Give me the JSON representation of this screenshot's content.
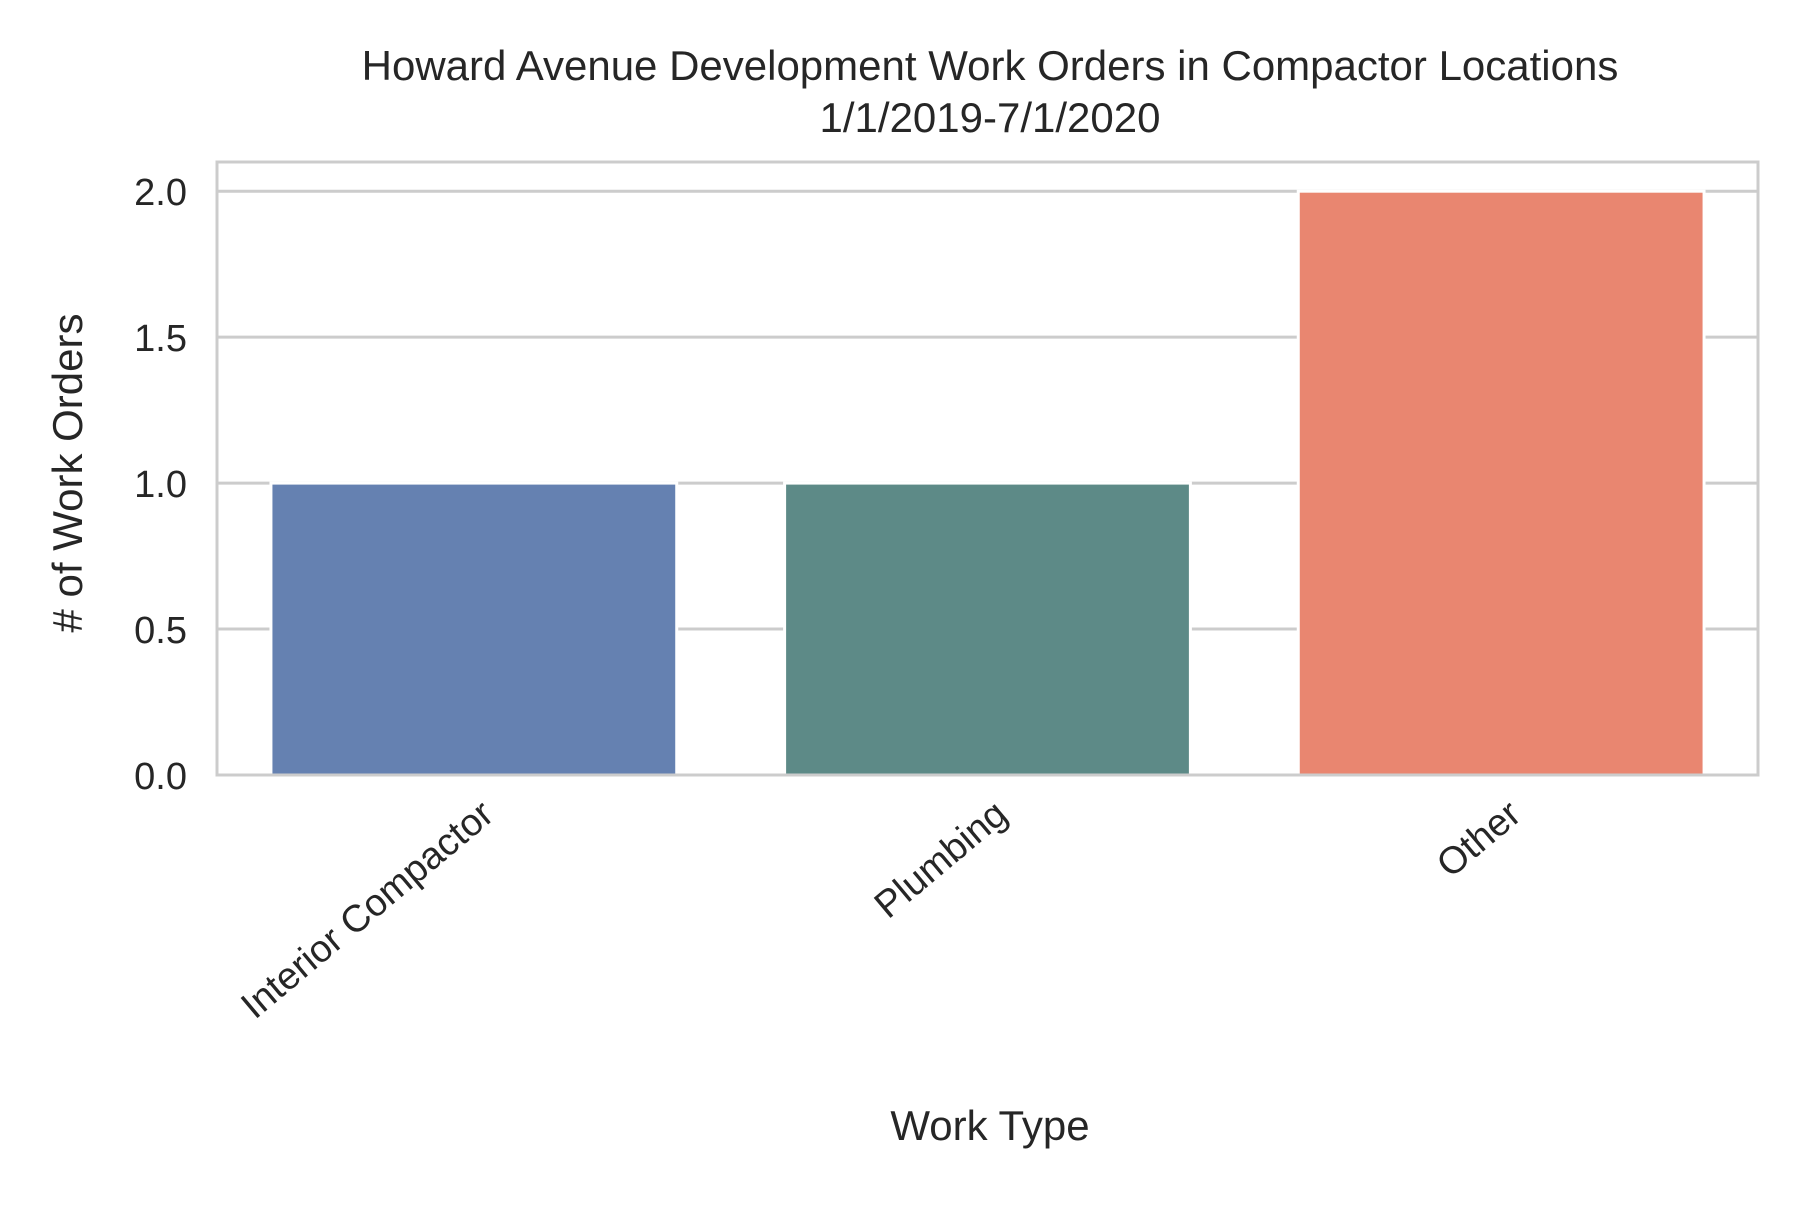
{
  "chart_data": {
    "type": "bar",
    "title": "Howard Avenue Development Work Orders in Compactor Locations",
    "subtitle": "1/1/2019-7/1/2020",
    "xlabel": "Work Type",
    "ylabel": "# of Work Orders",
    "categories": [
      "Interior Compactor",
      "Plumbing",
      "Other"
    ],
    "values": [
      1,
      1,
      2
    ],
    "colors": [
      "#6581b1",
      "#5d8a87",
      "#e98670"
    ],
    "ylim": [
      0,
      2.1
    ],
    "yticks": [
      "0.0",
      "0.5",
      "1.0",
      "1.5",
      "2.0"
    ],
    "ytick_values": [
      0,
      0.5,
      1.0,
      1.5,
      2.0
    ],
    "grid": "horizontal",
    "gridline_color": "#cccccc",
    "frame_color": "#cccccc",
    "legend": "none"
  }
}
